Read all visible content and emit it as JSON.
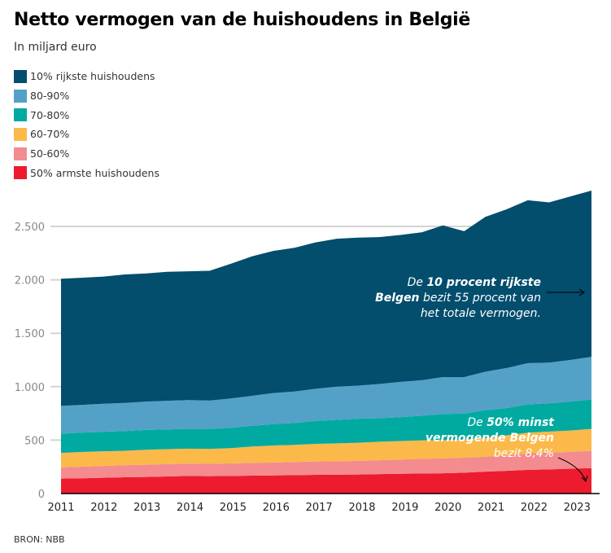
{
  "title": "Netto vermogen van de huishoudens in België",
  "subtitle": "In miljard euro",
  "source": "BRON: NBB",
  "annotations": {
    "top": {
      "pre": "De ",
      "bold1": "10 procent rijkste",
      "bold2": "Belgen",
      "post": " bezit 55 procent van",
      "line3": "het totale vermogen."
    },
    "bottom": {
      "pre": "De ",
      "bold1": "50% minst",
      "bold2": "vermogende Belgen",
      "line3": "bezit 8,4%"
    }
  },
  "chart_data": {
    "type": "area",
    "stacked": true,
    "title": "Netto vermogen van de huishoudens in België",
    "ylabel": "In miljard euro",
    "ylim": [
      0,
      2850
    ],
    "yticks": [
      0,
      500,
      1000,
      1500,
      2000,
      2500
    ],
    "ytick_labels": [
      "0",
      "500",
      "1.000",
      "1.500",
      "2.000",
      "2.500"
    ],
    "xticks": [
      2011,
      2012,
      2013,
      2014,
      2015,
      2016,
      2017,
      2018,
      2019,
      2020,
      2021,
      2022,
      2023
    ],
    "grid": true,
    "legend": "top-left",
    "x": [
      2011,
      2011.5,
      2012,
      2012.5,
      2013,
      2013.5,
      2014,
      2014.5,
      2015,
      2015.5,
      2016,
      2016.5,
      2017,
      2017.5,
      2018,
      2018.5,
      2019,
      2019.5,
      2020,
      2020.5,
      2021,
      2021.5,
      2022,
      2022.5,
      2023,
      2023.5
    ],
    "series": [
      {
        "name": "50% armste huishoudens",
        "color": "#ec1c2e",
        "values": [
          140,
          143,
          148,
          152,
          155,
          160,
          165,
          163,
          165,
          168,
          170,
          172,
          175,
          176,
          178,
          182,
          185,
          188,
          190,
          195,
          205,
          212,
          222,
          226,
          232,
          238
        ]
      },
      {
        "name": "50-60%",
        "color": "#f48b8f",
        "values": [
          105,
          109,
          110,
          113,
          115,
          115,
          115,
          115,
          117,
          120,
          120,
          123,
          125,
          126,
          127,
          130,
          133,
          137,
          140,
          140,
          140,
          148,
          153,
          156,
          158,
          162
        ]
      },
      {
        "name": "60-70%",
        "color": "#fbb94a",
        "values": [
          135,
          138,
          137,
          135,
          140,
          140,
          140,
          140,
          143,
          152,
          160,
          160,
          165,
          168,
          170,
          173,
          174,
          173,
          170,
          170,
          175,
          185,
          195,
          198,
          200,
          205
        ]
      },
      {
        "name": "70-80%",
        "color": "#00aaa0",
        "values": [
          180,
          180,
          183,
          185,
          185,
          185,
          185,
          187,
          190,
          195,
          200,
          205,
          215,
          220,
          225,
          220,
          223,
          230,
          245,
          243,
          260,
          255,
          265,
          265,
          270,
          275
        ]
      },
      {
        "name": "80-90%",
        "color": "#53a1c7",
        "values": [
          260,
          260,
          262,
          263,
          265,
          268,
          270,
          265,
          275,
          280,
          290,
          295,
          300,
          310,
          310,
          320,
          330,
          332,
          345,
          342,
          360,
          375,
          385,
          380,
          390,
          400
        ]
      },
      {
        "name": "10% rijkste huishoudens",
        "color": "#034d6d",
        "values": [
          1190,
          1190,
          1190,
          1202,
          1200,
          1207,
          1205,
          1215,
          1260,
          1305,
          1330,
          1345,
          1370,
          1385,
          1385,
          1375,
          1375,
          1385,
          1420,
          1365,
          1450,
          1485,
          1525,
          1500,
          1530,
          1555
        ]
      }
    ]
  }
}
